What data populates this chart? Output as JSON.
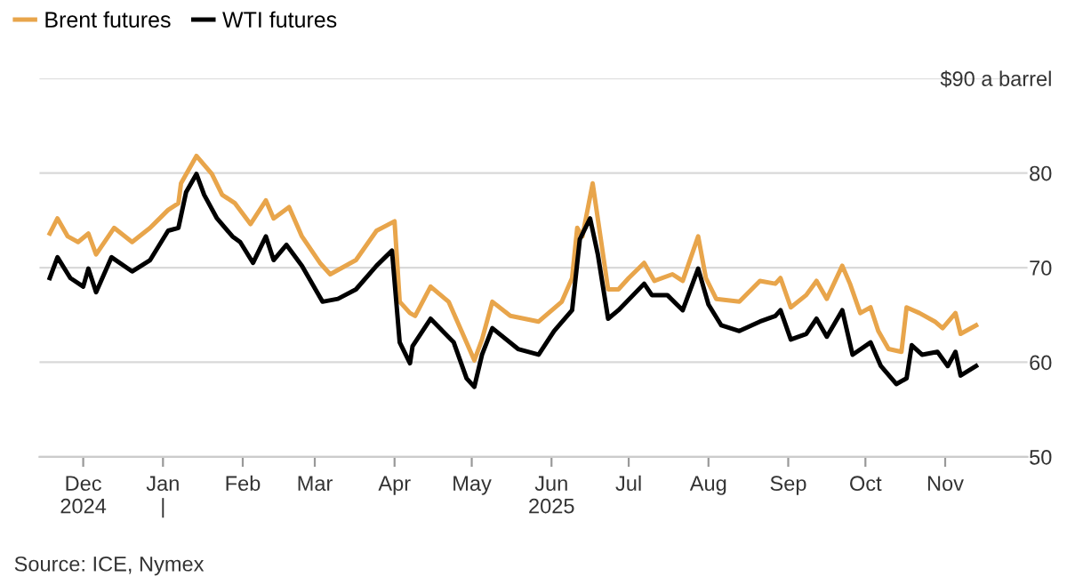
{
  "chart_data": {
    "type": "line",
    "annotations": [
      "Source: ICE, Nymex"
    ],
    "series": [
      {
        "name": "Brent futures",
        "color": "#e8a54b",
        "x": [
          "2024-11-18",
          "2024-11-21",
          "2024-11-25",
          "2024-11-29",
          "2024-12-03",
          "2024-12-06",
          "2024-12-13",
          "2024-12-20",
          "2024-12-27",
          "2025-01-03",
          "2025-01-07",
          "2025-01-08",
          "2025-01-14",
          "2025-01-20",
          "2025-01-24",
          "2025-01-29",
          "2025-02-04",
          "2025-02-10",
          "2025-02-13",
          "2025-02-19",
          "2025-02-24",
          "2025-03-03",
          "2025-03-07",
          "2025-03-17",
          "2025-03-25",
          "2025-04-01",
          "2025-04-03",
          "2025-04-07",
          "2025-04-09",
          "2025-04-15",
          "2025-04-22",
          "2025-04-28",
          "2025-05-02",
          "2025-05-05",
          "2025-05-09",
          "2025-05-16",
          "2025-05-27",
          "2025-06-05",
          "2025-06-09",
          "2025-06-11",
          "2025-06-13",
          "2025-06-17",
          "2025-06-20",
          "2025-06-23",
          "2025-06-27",
          "2025-07-01",
          "2025-07-07",
          "2025-07-11",
          "2025-07-18",
          "2025-07-22",
          "2025-07-28",
          "2025-07-31",
          "2025-08-04",
          "2025-08-13",
          "2025-08-21",
          "2025-08-27",
          "2025-08-29",
          "2025-09-02",
          "2025-09-08",
          "2025-09-12",
          "2025-09-16",
          "2025-09-22",
          "2025-09-25",
          "2025-09-29",
          "2025-10-03",
          "2025-10-06",
          "2025-10-10",
          "2025-10-15",
          "2025-10-17",
          "2025-10-22",
          "2025-10-28",
          "2025-10-31",
          "2025-11-05",
          "2025-11-07",
          "2025-11-13"
        ],
        "values": [
          73.6,
          75.2,
          73.3,
          72.7,
          73.6,
          71.4,
          74.2,
          72.7,
          74.2,
          76.1,
          76.8,
          78.9,
          81.8,
          79.9,
          77.7,
          76.8,
          74.6,
          77.1,
          75.2,
          76.4,
          73.3,
          70.5,
          69.3,
          70.8,
          73.9,
          74.9,
          66.4,
          65.2,
          64.9,
          68.0,
          66.4,
          62.7,
          60.2,
          62.4,
          66.4,
          64.9,
          64.3,
          66.4,
          68.9,
          74.2,
          73.3,
          78.9,
          73.3,
          67.7,
          67.7,
          68.9,
          70.5,
          68.6,
          69.3,
          68.6,
          73.3,
          68.9,
          66.7,
          66.4,
          68.6,
          68.3,
          68.9,
          65.8,
          67.1,
          68.6,
          66.7,
          70.2,
          68.3,
          65.2,
          65.8,
          63.3,
          61.4,
          61.1,
          65.8,
          65.2,
          64.3,
          63.6,
          65.2,
          63.0,
          63.9
        ]
      },
      {
        "name": "WTI futures",
        "color": "#000000",
        "x": [
          "2024-11-18",
          "2024-11-21",
          "2024-11-26",
          "2024-12-01",
          "2024-12-03",
          "2024-12-06",
          "2024-12-12",
          "2024-12-20",
          "2024-12-27",
          "2025-01-03",
          "2025-01-07",
          "2025-01-10",
          "2025-01-14",
          "2025-01-17",
          "2025-01-22",
          "2025-01-28",
          "2025-01-31",
          "2025-02-05",
          "2025-02-10",
          "2025-02-13",
          "2025-02-18",
          "2025-02-24",
          "2025-03-04",
          "2025-03-10",
          "2025-03-17",
          "2025-03-25",
          "2025-03-31",
          "2025-04-03",
          "2025-04-07",
          "2025-04-08",
          "2025-04-15",
          "2025-04-24",
          "2025-04-29",
          "2025-05-02",
          "2025-05-05",
          "2025-05-09",
          "2025-05-19",
          "2025-05-27",
          "2025-06-02",
          "2025-06-09",
          "2025-06-12",
          "2025-06-16",
          "2025-06-19",
          "2025-06-23",
          "2025-06-27",
          "2025-07-07",
          "2025-07-10",
          "2025-07-16",
          "2025-07-22",
          "2025-07-28",
          "2025-08-01",
          "2025-08-06",
          "2025-08-13",
          "2025-08-21",
          "2025-08-27",
          "2025-08-29",
          "2025-09-02",
          "2025-09-08",
          "2025-09-12",
          "2025-09-16",
          "2025-09-22",
          "2025-09-26",
          "2025-10-03",
          "2025-10-07",
          "2025-10-13",
          "2025-10-17",
          "2025-10-19",
          "2025-10-23",
          "2025-10-29",
          "2025-11-02",
          "2025-11-05",
          "2025-11-07",
          "2025-11-13"
        ],
        "values": [
          68.9,
          71.1,
          68.9,
          68.0,
          69.9,
          67.4,
          71.1,
          69.6,
          70.8,
          73.9,
          74.2,
          78.0,
          79.9,
          77.7,
          75.2,
          73.3,
          72.7,
          70.5,
          73.3,
          70.8,
          72.4,
          70.2,
          66.4,
          66.7,
          67.7,
          70.2,
          71.8,
          62.1,
          59.9,
          61.7,
          64.6,
          62.1,
          58.3,
          57.4,
          60.8,
          63.6,
          61.4,
          60.8,
          63.3,
          65.5,
          73.0,
          75.2,
          71.4,
          64.6,
          65.5,
          68.3,
          67.1,
          67.1,
          65.5,
          69.9,
          66.1,
          63.9,
          63.3,
          64.3,
          64.9,
          65.5,
          62.4,
          63.0,
          64.6,
          62.7,
          65.5,
          60.8,
          62.1,
          59.6,
          57.7,
          58.3,
          61.8,
          60.8,
          61.1,
          59.6,
          61.1,
          58.6,
          59.6
        ]
      }
    ],
    "xlim": [
      "2024-11-14",
      "2025-12-03"
    ],
    "xticks": [
      {
        "value": "2024-12-01",
        "label": "Dec\n2024"
      },
      {
        "value": "2025-01-01",
        "label": "Jan\n|"
      },
      {
        "value": "2025-02-01",
        "label": "Feb"
      },
      {
        "value": "2025-03-01",
        "label": "Mar"
      },
      {
        "value": "2025-04-01",
        "label": "Apr"
      },
      {
        "value": "2025-05-01",
        "label": "May"
      },
      {
        "value": "2025-06-01",
        "label": "Jun\n2025"
      },
      {
        "value": "2025-07-01",
        "label": "Jul"
      },
      {
        "value": "2025-08-01",
        "label": "Aug"
      },
      {
        "value": "2025-09-01",
        "label": "Sep"
      },
      {
        "value": "2025-10-01",
        "label": "Oct"
      },
      {
        "value": "2025-11-01",
        "label": "Nov"
      }
    ],
    "ylim": [
      50,
      90
    ],
    "yticks": [
      50,
      60,
      70,
      80,
      {
        "value": 90,
        "label": "$90 a barrel"
      }
    ],
    "grid": "y",
    "legend": "top left",
    "line_style": "solid",
    "marker": "none"
  }
}
